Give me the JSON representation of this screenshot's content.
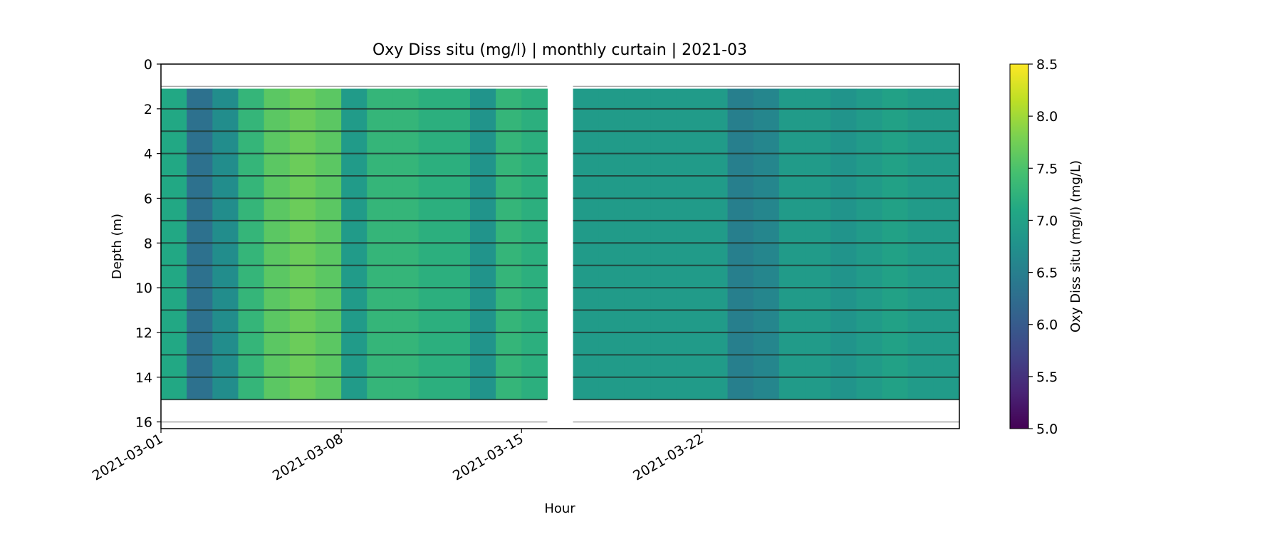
{
  "chart_data": {
    "type": "heatmap",
    "title": "Oxy Diss situ (mg/l) | monthly curtain | 2021-03",
    "xlabel": "Hour",
    "ylabel": "Depth (m)",
    "x_range": [
      "2021-03-01",
      "2021-04-01"
    ],
    "x_ticks": [
      "2021-03-01",
      "2021-03-08",
      "2021-03-15",
      "2021-03-22"
    ],
    "y_range": [
      0,
      16.3
    ],
    "y_inverted": true,
    "y_ticks": [
      0,
      2,
      4,
      6,
      8,
      10,
      12,
      14,
      16
    ],
    "colormap": "viridis",
    "colorbar": {
      "label": "Oxy Diss situ (mg/l) (mg/L)",
      "range": [
        5.0,
        8.5
      ],
      "ticks": [
        "5.0",
        "5.5",
        "6.0",
        "6.5",
        "7.0",
        "7.5",
        "8.0",
        "8.5"
      ]
    },
    "data_gap": [
      "2021-03-16",
      "2021-03-16"
    ],
    "sensor_depths_m": [
      1,
      2,
      3,
      4,
      5,
      6,
      7,
      8,
      9,
      10,
      11,
      12,
      13,
      14,
      15,
      16
    ],
    "approx_daily_values_mg_l": [
      {
        "date": "2021-03-01",
        "value": 7.1
      },
      {
        "date": "2021-03-02",
        "value": 6.3
      },
      {
        "date": "2021-03-03",
        "value": 6.7
      },
      {
        "date": "2021-03-04",
        "value": 7.3
      },
      {
        "date": "2021-03-05",
        "value": 7.6
      },
      {
        "date": "2021-03-06",
        "value": 7.7
      },
      {
        "date": "2021-03-07",
        "value": 7.6
      },
      {
        "date": "2021-03-08",
        "value": 6.9
      },
      {
        "date": "2021-03-09",
        "value": 7.3
      },
      {
        "date": "2021-03-10",
        "value": 7.3
      },
      {
        "date": "2021-03-11",
        "value": 7.2
      },
      {
        "date": "2021-03-12",
        "value": 7.2
      },
      {
        "date": "2021-03-13",
        "value": 6.8
      },
      {
        "date": "2021-03-14",
        "value": 7.3
      },
      {
        "date": "2021-03-15",
        "value": 7.2
      },
      {
        "date": "2021-03-17",
        "value": 6.9
      },
      {
        "date": "2021-03-18",
        "value": 6.9
      },
      {
        "date": "2021-03-19",
        "value": 6.9
      },
      {
        "date": "2021-03-20",
        "value": 6.9
      },
      {
        "date": "2021-03-21",
        "value": 6.9
      },
      {
        "date": "2021-03-22",
        "value": 6.9
      },
      {
        "date": "2021-03-23",
        "value": 6.5
      },
      {
        "date": "2021-03-24",
        "value": 6.6
      },
      {
        "date": "2021-03-25",
        "value": 6.9
      },
      {
        "date": "2021-03-26",
        "value": 6.9
      },
      {
        "date": "2021-03-27",
        "value": 6.8
      },
      {
        "date": "2021-03-28",
        "value": 6.9
      },
      {
        "date": "2021-03-29",
        "value": 7.0
      },
      {
        "date": "2021-03-30",
        "value": 6.9
      },
      {
        "date": "2021-03-31",
        "value": 6.9
      }
    ]
  }
}
